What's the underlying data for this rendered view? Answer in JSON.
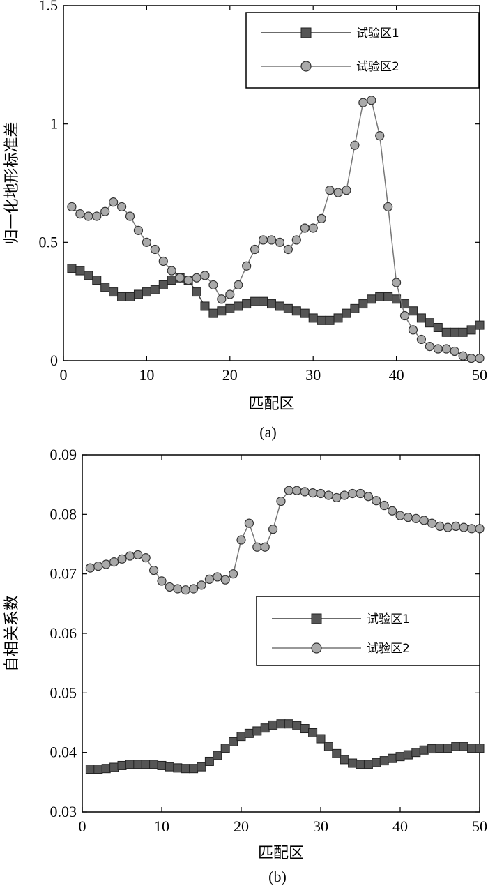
{
  "chart_data": [
    {
      "id": "a",
      "type": "line",
      "caption": "(a)",
      "xlabel": "匹配区",
      "ylabel": "归一化地形标准差",
      "xlim": [
        0,
        50
      ],
      "ylim": [
        0,
        1.5
      ],
      "xticks": [
        0,
        10,
        20,
        30,
        40,
        50
      ],
      "yticks": [
        0,
        0.5,
        1,
        1.5
      ],
      "ytick_labels": [
        "0",
        "0.5",
        "1",
        "1.5"
      ],
      "legend_position": "top-right",
      "series": [
        {
          "name": "试验区1",
          "marker": "square",
          "x": [
            1,
            2,
            3,
            4,
            5,
            6,
            7,
            8,
            9,
            10,
            11,
            12,
            13,
            14,
            15,
            16,
            17,
            18,
            19,
            20,
            21,
            22,
            23,
            24,
            25,
            26,
            27,
            28,
            29,
            30,
            31,
            32,
            33,
            34,
            35,
            36,
            37,
            38,
            39,
            40,
            41,
            42,
            43,
            44,
            45,
            46,
            47,
            48,
            49,
            50
          ],
          "values": [
            0.39,
            0.38,
            0.36,
            0.34,
            0.31,
            0.29,
            0.27,
            0.27,
            0.28,
            0.29,
            0.3,
            0.32,
            0.34,
            0.35,
            0.34,
            0.29,
            0.23,
            0.2,
            0.21,
            0.22,
            0.23,
            0.24,
            0.25,
            0.25,
            0.24,
            0.23,
            0.22,
            0.21,
            0.2,
            0.18,
            0.17,
            0.17,
            0.18,
            0.2,
            0.22,
            0.24,
            0.26,
            0.27,
            0.27,
            0.26,
            0.24,
            0.21,
            0.18,
            0.16,
            0.14,
            0.12,
            0.12,
            0.12,
            0.13,
            0.15
          ]
        },
        {
          "name": "试验区2",
          "marker": "circle",
          "x": [
            1,
            2,
            3,
            4,
            5,
            6,
            7,
            8,
            9,
            10,
            11,
            12,
            13,
            14,
            15,
            16,
            17,
            18,
            19,
            20,
            21,
            22,
            23,
            24,
            25,
            26,
            27,
            28,
            29,
            30,
            31,
            32,
            33,
            34,
            35,
            36,
            37,
            38,
            39,
            40,
            41,
            42,
            43,
            44,
            45,
            46,
            47,
            48,
            49,
            50
          ],
          "values": [
            0.65,
            0.62,
            0.61,
            0.61,
            0.63,
            0.67,
            0.65,
            0.61,
            0.55,
            0.5,
            0.47,
            0.42,
            0.38,
            0.35,
            0.34,
            0.35,
            0.36,
            0.32,
            0.26,
            0.28,
            0.32,
            0.4,
            0.47,
            0.51,
            0.51,
            0.5,
            0.47,
            0.51,
            0.56,
            0.56,
            0.6,
            0.72,
            0.71,
            0.72,
            0.91,
            1.09,
            1.1,
            0.95,
            0.65,
            0.33,
            0.19,
            0.13,
            0.09,
            0.06,
            0.05,
            0.05,
            0.04,
            0.02,
            0.01,
            0.01
          ]
        }
      ]
    },
    {
      "id": "b",
      "type": "line",
      "caption": "(b)",
      "xlabel": "匹配区",
      "ylabel": "自相关系数",
      "xlim": [
        0,
        50
      ],
      "ylim": [
        0.03,
        0.09
      ],
      "xticks": [
        0,
        10,
        20,
        30,
        40,
        50
      ],
      "yticks": [
        0.03,
        0.04,
        0.05,
        0.06,
        0.07,
        0.08,
        0.09
      ],
      "ytick_labels": [
        "0.03",
        "0.04",
        "0.05",
        "0.06",
        "0.07",
        "0.08",
        "0.09"
      ],
      "legend_position": "center-right",
      "series": [
        {
          "name": "试验区1",
          "marker": "square",
          "x": [
            1,
            2,
            3,
            4,
            5,
            6,
            7,
            8,
            9,
            10,
            11,
            12,
            13,
            14,
            15,
            16,
            17,
            18,
            19,
            20,
            21,
            22,
            23,
            24,
            25,
            26,
            27,
            28,
            29,
            30,
            31,
            32,
            33,
            34,
            35,
            36,
            37,
            38,
            39,
            40,
            41,
            42,
            43,
            44,
            45,
            46,
            47,
            48,
            49,
            50
          ],
          "values": [
            0.0372,
            0.0372,
            0.0373,
            0.0375,
            0.0378,
            0.038,
            0.038,
            0.038,
            0.038,
            0.0378,
            0.0376,
            0.0374,
            0.0373,
            0.0373,
            0.0376,
            0.0385,
            0.0395,
            0.0407,
            0.0418,
            0.0427,
            0.0432,
            0.0436,
            0.0441,
            0.0446,
            0.0448,
            0.0448,
            0.0445,
            0.044,
            0.0433,
            0.0423,
            0.041,
            0.0398,
            0.0388,
            0.0382,
            0.038,
            0.038,
            0.0383,
            0.0386,
            0.039,
            0.0393,
            0.0396,
            0.04,
            0.0404,
            0.0406,
            0.0407,
            0.0407,
            0.041,
            0.041,
            0.0407,
            0.0407
          ]
        },
        {
          "name": "试验区2",
          "marker": "circle",
          "x": [
            1,
            2,
            3,
            4,
            5,
            6,
            7,
            8,
            9,
            10,
            11,
            12,
            13,
            14,
            15,
            16,
            17,
            18,
            19,
            20,
            21,
            22,
            23,
            24,
            25,
            26,
            27,
            28,
            29,
            30,
            31,
            32,
            33,
            34,
            35,
            36,
            37,
            38,
            39,
            40,
            41,
            42,
            43,
            44,
            45,
            46,
            47,
            48,
            49,
            50
          ],
          "values": [
            0.071,
            0.0713,
            0.0716,
            0.072,
            0.0725,
            0.073,
            0.0732,
            0.0727,
            0.0706,
            0.0688,
            0.0678,
            0.0675,
            0.0673,
            0.0675,
            0.0681,
            0.0691,
            0.0695,
            0.069,
            0.07,
            0.0757,
            0.0785,
            0.0745,
            0.0745,
            0.0775,
            0.0822,
            0.084,
            0.084,
            0.0838,
            0.0836,
            0.0835,
            0.0832,
            0.0828,
            0.0832,
            0.0835,
            0.0835,
            0.083,
            0.0823,
            0.0815,
            0.0806,
            0.0798,
            0.0795,
            0.0793,
            0.079,
            0.0785,
            0.078,
            0.0778,
            0.078,
            0.0778,
            0.0776,
            0.0776
          ]
        }
      ]
    }
  ]
}
